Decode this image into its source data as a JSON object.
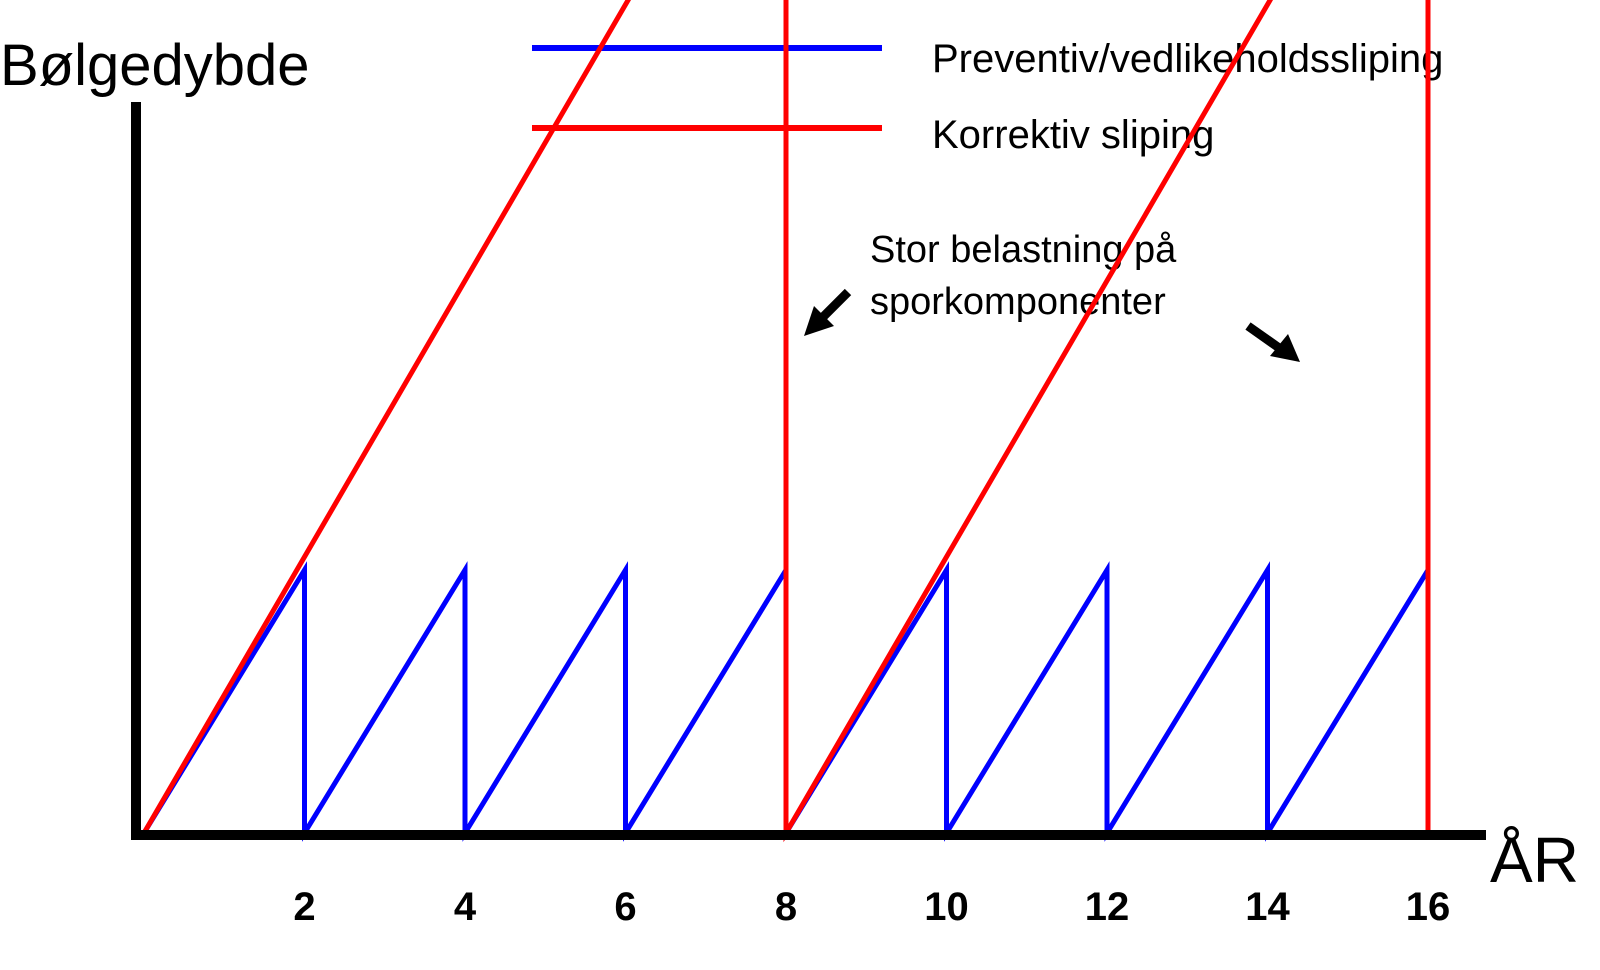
{
  "chart_data": {
    "type": "line",
    "ylabel": "Bølgedybde",
    "xlabel": "ÅR",
    "xlim": [
      0,
      17
    ],
    "ylim": [
      0,
      5
    ],
    "x_ticks": [
      2,
      4,
      6,
      8,
      10,
      12,
      14,
      16
    ],
    "grid": false,
    "legend_position": "top-right",
    "series": [
      {
        "name": "Preventiv/vedlikeholdssliping",
        "color": "#0000ff",
        "x": [
          0,
          2,
          2,
          4,
          4,
          6,
          6,
          8,
          8,
          10,
          10,
          12,
          12,
          14,
          14,
          16,
          16
        ],
        "y": [
          0,
          1,
          0,
          1,
          0,
          1,
          0,
          1,
          0,
          1,
          0,
          1,
          0,
          1,
          0,
          1,
          0
        ]
      },
      {
        "name": "Korrektiv sliping",
        "color": "#ff0000",
        "x": [
          0,
          8,
          8,
          16,
          16
        ],
        "y": [
          0,
          4.2,
          0,
          4.2,
          0
        ]
      }
    ],
    "annotations": [
      {
        "text_lines": [
          "Stor belastning på",
          "sporkomponenter"
        ]
      }
    ]
  }
}
